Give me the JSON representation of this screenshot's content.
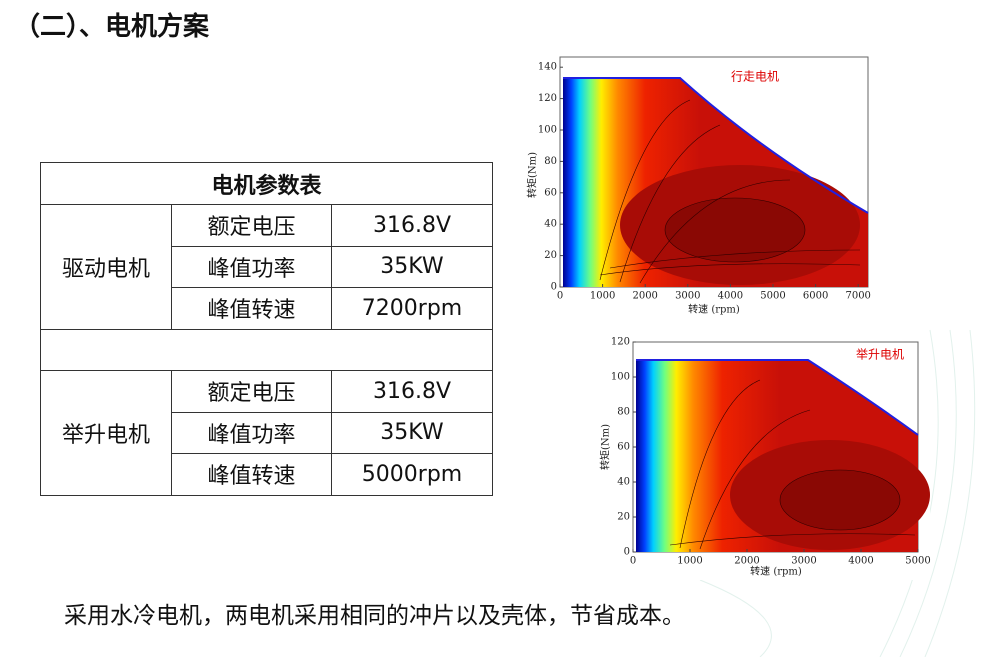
{
  "title": "（二）、电机方案",
  "table": {
    "caption": "电机参数表",
    "groups": [
      {
        "name": "驱动电机",
        "rows": [
          [
            "额定电压",
            "316.8V"
          ],
          [
            "峰值功率",
            "35KW"
          ],
          [
            "峰值转速",
            "7200rpm"
          ]
        ]
      },
      {
        "name": "举升电机",
        "rows": [
          [
            "额定电压",
            "316.8V"
          ],
          [
            "峰值功率",
            "35KW"
          ],
          [
            "峰值转速",
            "5000rpm"
          ]
        ]
      }
    ]
  },
  "figures": [
    {
      "label": "行走电机",
      "x_label": "转速 (rpm)",
      "y_label": "转矩(Nm)",
      "xticks": [
        0,
        1000,
        2000,
        3000,
        4000,
        5000,
        6000,
        7000
      ],
      "yticks": [
        0,
        20,
        40,
        60,
        80,
        100,
        120,
        140
      ]
    },
    {
      "label": "举升电机",
      "x_label": "转速 (rpm)",
      "y_label": "转矩(Nm)",
      "xticks": [
        0,
        1000,
        2000,
        3000,
        4000,
        5000
      ],
      "yticks": [
        0,
        20,
        40,
        60,
        80,
        100,
        120
      ]
    }
  ],
  "footer": "采用水冷电机，两电机采用相同的冲片以及壳体，节省成本。"
}
